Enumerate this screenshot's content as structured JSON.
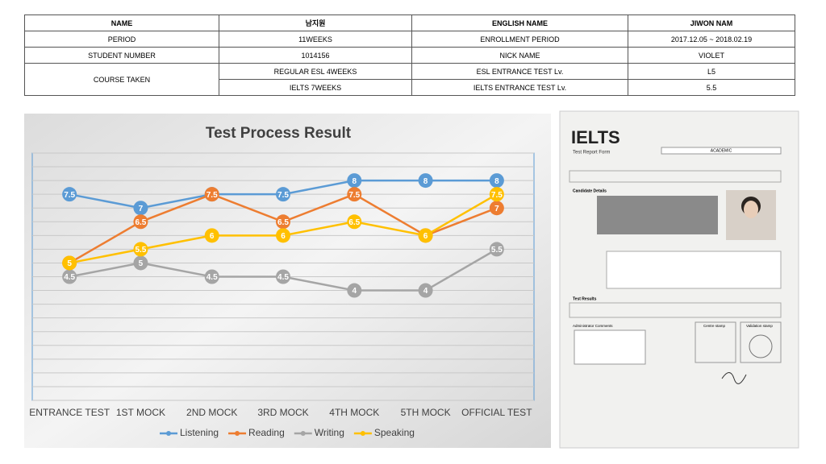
{
  "table": {
    "rows": [
      [
        "NAME",
        "남지원",
        "ENGLISH NAME",
        "JIWON NAM"
      ],
      [
        "PERIOD",
        "11WEEKS",
        "ENROLLMENT PERIOD",
        "2017.12.05 ~ 2018.02.19"
      ],
      [
        "STUDENT NUMBER",
        "1014156",
        "NICK NAME",
        "VIOLET"
      ],
      [
        "COURSE TAKEN",
        "REGULAR ESL 4WEEKS",
        "ESL ENTRANCE TEST Lv.",
        "L5"
      ],
      [
        "IELTS 7WEEKS",
        "IELTS ENTRANCE TEST Lv.",
        "5.5"
      ]
    ]
  },
  "chart_data": {
    "type": "line",
    "title": "Test Process Result",
    "categories": [
      "ENTRANCE TEST",
      "1ST MOCK",
      "2ND MOCK",
      "3RD MOCK",
      "4TH MOCK",
      "5TH MOCK",
      "OFFICIAL TEST"
    ],
    "series": [
      {
        "name": "Listening",
        "color": "#5b9bd5",
        "values": [
          7.5,
          7,
          7.5,
          7.5,
          8,
          8,
          8
        ]
      },
      {
        "name": "Reading",
        "color": "#ed7d31",
        "values": [
          5,
          6.5,
          7.5,
          6.5,
          7.5,
          6,
          7
        ]
      },
      {
        "name": "Writing",
        "color": "#a5a5a5",
        "values": [
          4.5,
          5,
          4.5,
          4.5,
          4,
          4,
          5.5
        ]
      },
      {
        "name": "Speaking",
        "color": "#ffc000",
        "values": [
          5,
          5.5,
          6,
          6,
          6.5,
          6,
          7.5
        ]
      }
    ],
    "ylim": [
      0,
      9
    ],
    "yticks": [
      0,
      0.5,
      1,
      1.5,
      2,
      2.5,
      3,
      3.5,
      4,
      4.5,
      5,
      5.5,
      6,
      6.5,
      7,
      7.5,
      8,
      8.5,
      9
    ],
    "grid": true,
    "legend": "bottom"
  },
  "report": {
    "logo": "IELTS",
    "form": "Test Report Form",
    "module": "ACADEMIC",
    "candidate": "Candidate Details",
    "results": "Test Results",
    "comments": "Administrator Comments",
    "centre": "Centre stamp",
    "validation": "Validation stamp"
  }
}
